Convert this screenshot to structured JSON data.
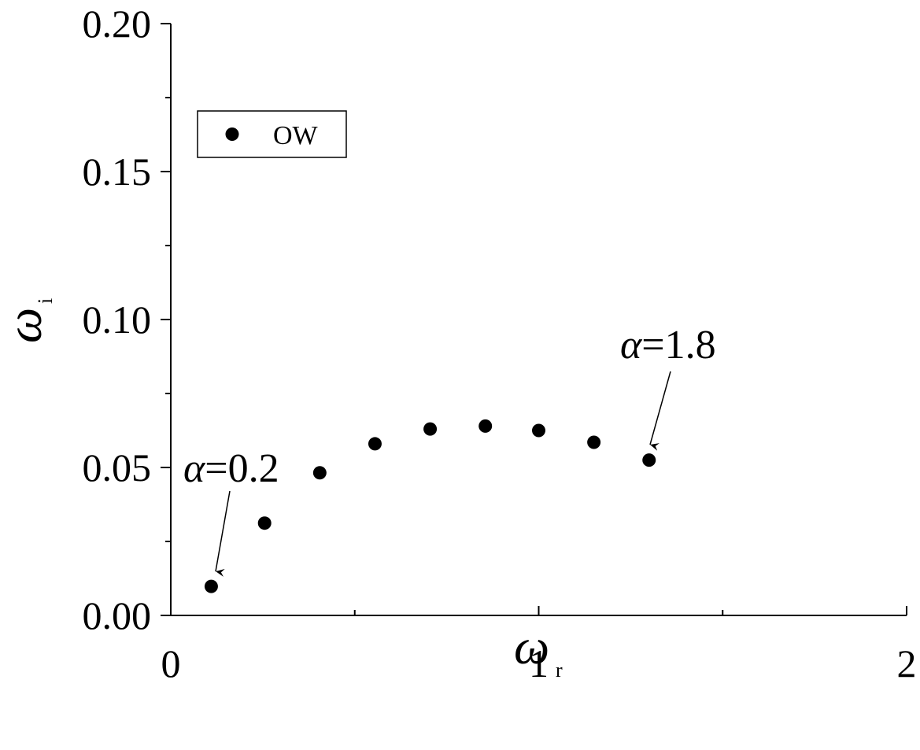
{
  "chart_data": {
    "type": "scatter",
    "title": "",
    "xlabel": {
      "symbol": "ω",
      "subscript": "r"
    },
    "ylabel": {
      "symbol": "ω",
      "subscript": "i"
    },
    "xlim": [
      0,
      2
    ],
    "ylim": [
      0,
      0.2
    ],
    "x_ticks": [
      0,
      1,
      2
    ],
    "x_tick_labels": [
      "0",
      "1",
      "2"
    ],
    "x_minor_ticks": [
      0.5,
      1.5
    ],
    "y_ticks": [
      0,
      0.05,
      0.1,
      0.15,
      0.2
    ],
    "y_tick_labels": [
      "0.00",
      "0.05",
      "0.10",
      "0.15",
      "0.20"
    ],
    "y_minor_ticks": [
      0.025,
      0.075,
      0.125,
      0.175
    ],
    "grid": false,
    "legend": {
      "position": "top-left",
      "entries": [
        "OW"
      ]
    },
    "series": [
      {
        "name": "OW",
        "marker": "filled-circle",
        "color": "#000000",
        "x": [
          0.11,
          0.255,
          0.405,
          0.555,
          0.705,
          0.855,
          1.0,
          1.15,
          1.3
        ],
        "y": [
          0.0098,
          0.0312,
          0.0482,
          0.058,
          0.063,
          0.064,
          0.0625,
          0.0585,
          0.0525
        ]
      }
    ],
    "annotations": [
      {
        "symbol": "α",
        "text": "=0.2",
        "points_to": [
          0.11,
          0.0098
        ]
      },
      {
        "symbol": "α",
        "text": "=1.8",
        "points_to": [
          1.3,
          0.0525
        ]
      }
    ]
  }
}
